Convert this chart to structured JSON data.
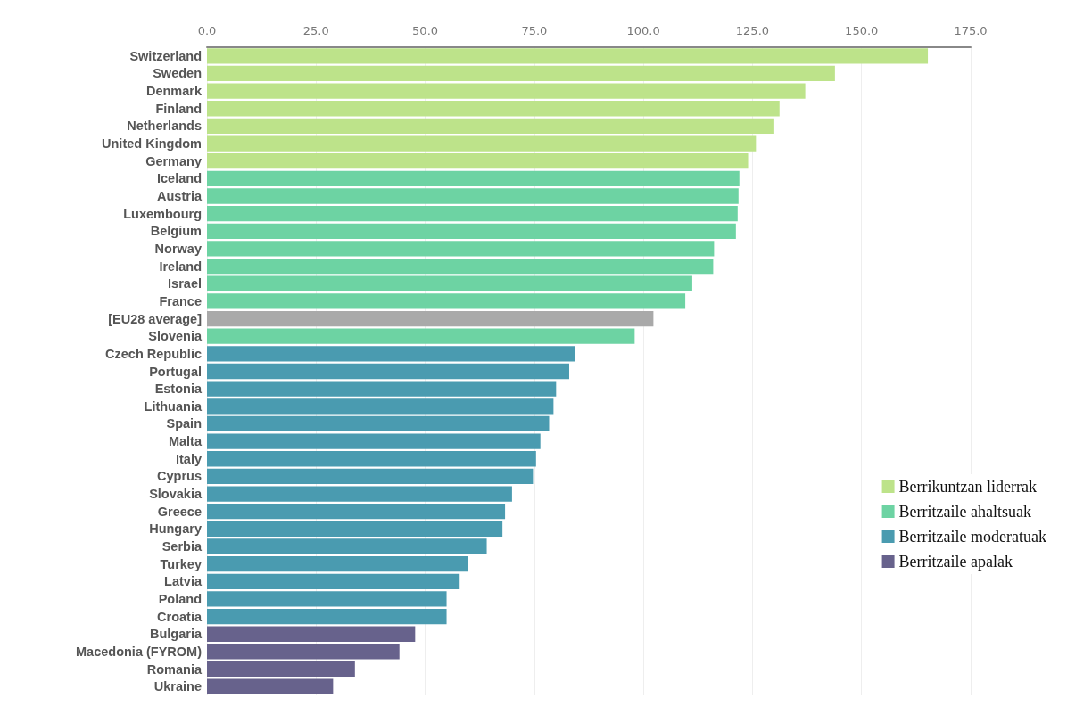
{
  "chart_data": {
    "type": "bar",
    "orientation": "horizontal",
    "stacked": true,
    "categories": [
      "Switzerland",
      "Sweden",
      "Denmark",
      "Finland",
      "Netherlands",
      "United Kingdom",
      "Germany",
      "Iceland",
      "Austria",
      "Luxembourg",
      "Belgium",
      "Norway",
      "Ireland",
      "Israel",
      "France",
      "[EU28 average]",
      "Slovenia",
      "Czech Republic",
      "Portugal",
      "Estonia",
      "Lithuania",
      "Spain",
      "Malta",
      "Italy",
      "Cyprus",
      "Slovakia",
      "Greece",
      "Hungary",
      "Serbia",
      "Turkey",
      "Latvia",
      "Poland",
      "Croatia",
      "Bulgaria",
      "Macedonia (FYROM)",
      "Romania",
      "Ukraine"
    ],
    "series": [
      {
        "name": "Berrikuntzan liderrak",
        "color": "#bde38a",
        "values": [
          165.2,
          143.9,
          137.1,
          131.2,
          130.0,
          125.8,
          124.0,
          null,
          null,
          null,
          null,
          null,
          null,
          null,
          null,
          null,
          null,
          null,
          null,
          null,
          null,
          null,
          null,
          null,
          null,
          null,
          null,
          null,
          null,
          null,
          null,
          null,
          null,
          null,
          null,
          null,
          null
        ]
      },
      {
        "name": "Berritzaile ahaltsuak",
        "color": "#6dd3a3",
        "values": [
          null,
          null,
          null,
          null,
          null,
          null,
          null,
          122.0,
          121.8,
          121.6,
          121.2,
          116.2,
          116.0,
          111.2,
          109.6,
          null,
          98.0,
          null,
          null,
          null,
          null,
          null,
          null,
          null,
          null,
          null,
          null,
          null,
          null,
          null,
          null,
          null,
          null,
          null,
          null,
          null,
          null
        ]
      },
      {
        "name": "Berritzaile moderatuak",
        "color": "#4a9bb0",
        "values": [
          null,
          null,
          null,
          null,
          null,
          null,
          null,
          null,
          null,
          null,
          null,
          null,
          null,
          null,
          null,
          null,
          null,
          84.4,
          83.0,
          80.0,
          79.4,
          78.4,
          76.4,
          75.4,
          74.7,
          69.9,
          68.3,
          67.7,
          64.1,
          59.9,
          57.9,
          54.9,
          54.9,
          null,
          null,
          null,
          null
        ]
      },
      {
        "name": "Berritzaile apalak",
        "color": "#67628c",
        "values": [
          null,
          null,
          null,
          null,
          null,
          null,
          null,
          null,
          null,
          null,
          null,
          null,
          null,
          null,
          null,
          null,
          null,
          null,
          null,
          null,
          null,
          null,
          null,
          null,
          null,
          null,
          null,
          null,
          null,
          null,
          null,
          null,
          null,
          47.7,
          44.1,
          33.9,
          28.9
        ]
      },
      {
        "color": "#a9a9a9",
        "values": [
          null,
          null,
          null,
          null,
          null,
          null,
          null,
          null,
          null,
          null,
          null,
          null,
          null,
          null,
          null,
          102.3,
          null,
          null,
          null,
          null,
          null,
          null,
          null,
          null,
          null,
          null,
          null,
          null,
          null,
          null,
          null,
          null,
          null,
          null,
          null,
          null,
          null
        ]
      }
    ],
    "xlim": [
      0,
      175
    ],
    "xticks": [
      {
        "value": 0,
        "label": "0.0"
      },
      {
        "value": 25,
        "label": "25.0"
      },
      {
        "value": 50,
        "label": "50.0"
      },
      {
        "value": 75,
        "label": "75.0"
      },
      {
        "value": 100,
        "label": "100.0"
      },
      {
        "value": 125,
        "label": "125.0"
      },
      {
        "value": 150,
        "label": "150.0"
      },
      {
        "value": 175,
        "label": "175.0"
      }
    ],
    "grid": "x",
    "legend": "bottom right"
  }
}
